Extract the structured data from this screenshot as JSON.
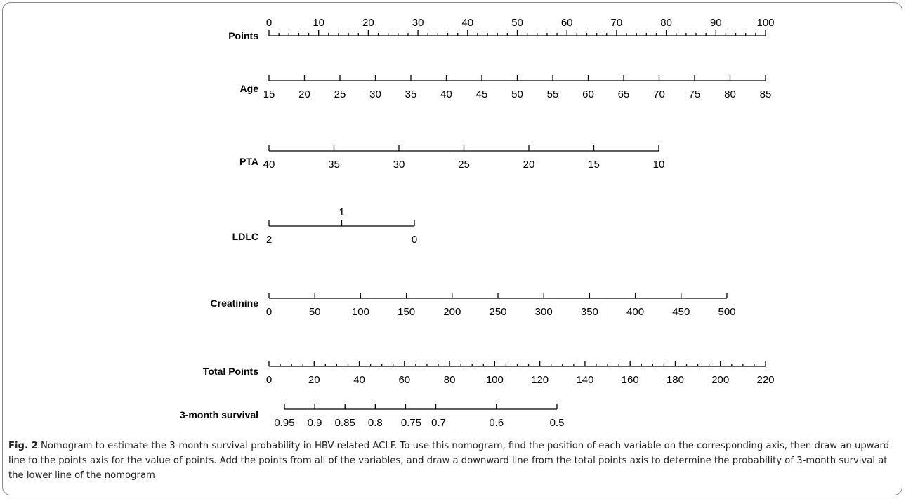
{
  "chart_data": {
    "type": "nomogram",
    "axes": [
      {
        "label": "Points",
        "ticks": [
          {
            "value": 0,
            "text": "0"
          },
          {
            "value": 10,
            "text": "10"
          },
          {
            "value": 20,
            "text": "20"
          },
          {
            "value": 30,
            "text": "30"
          },
          {
            "value": 40,
            "text": "40"
          },
          {
            "value": 50,
            "text": "50"
          },
          {
            "value": 60,
            "text": "60"
          },
          {
            "value": 70,
            "text": "70"
          },
          {
            "value": 80,
            "text": "80"
          },
          {
            "value": 90,
            "text": "90"
          },
          {
            "value": 100,
            "text": "100"
          }
        ]
      },
      {
        "label": "Age",
        "ticks": [
          {
            "value": 15,
            "text": "15"
          },
          {
            "value": 20,
            "text": "20"
          },
          {
            "value": 25,
            "text": "25"
          },
          {
            "value": 30,
            "text": "30"
          },
          {
            "value": 35,
            "text": "35"
          },
          {
            "value": 40,
            "text": "40"
          },
          {
            "value": 45,
            "text": "45"
          },
          {
            "value": 50,
            "text": "50"
          },
          {
            "value": 55,
            "text": "55"
          },
          {
            "value": 60,
            "text": "60"
          },
          {
            "value": 65,
            "text": "65"
          },
          {
            "value": 70,
            "text": "70"
          },
          {
            "value": 75,
            "text": "75"
          },
          {
            "value": 80,
            "text": "80"
          },
          {
            "value": 85,
            "text": "85"
          }
        ]
      },
      {
        "label": "PTA",
        "ticks": [
          {
            "value": 40,
            "text": "40"
          },
          {
            "value": 35,
            "text": "35"
          },
          {
            "value": 30,
            "text": "30"
          },
          {
            "value": 25,
            "text": "25"
          },
          {
            "value": 20,
            "text": "20"
          },
          {
            "value": 15,
            "text": "15"
          },
          {
            "value": 10,
            "text": "10"
          }
        ]
      },
      {
        "label": "LDLC",
        "ticks": [
          {
            "value": 2,
            "text": "2"
          },
          {
            "value": 1,
            "text": "1"
          },
          {
            "value": 0,
            "text": "0"
          }
        ]
      },
      {
        "label": "Creatinine",
        "ticks": [
          {
            "value": 0,
            "text": "0"
          },
          {
            "value": 50,
            "text": "50"
          },
          {
            "value": 100,
            "text": "100"
          },
          {
            "value": 150,
            "text": "150"
          },
          {
            "value": 200,
            "text": "200"
          },
          {
            "value": 250,
            "text": "250"
          },
          {
            "value": 300,
            "text": "300"
          },
          {
            "value": 350,
            "text": "350"
          },
          {
            "value": 400,
            "text": "400"
          },
          {
            "value": 450,
            "text": "450"
          },
          {
            "value": 500,
            "text": "500"
          }
        ]
      },
      {
        "label": "Total Points",
        "ticks": [
          {
            "value": 0,
            "text": "0"
          },
          {
            "value": 20,
            "text": "20"
          },
          {
            "value": 40,
            "text": "40"
          },
          {
            "value": 60,
            "text": "60"
          },
          {
            "value": 80,
            "text": "80"
          },
          {
            "value": 100,
            "text": "100"
          },
          {
            "value": 120,
            "text": "120"
          },
          {
            "value": 140,
            "text": "140"
          },
          {
            "value": 160,
            "text": "160"
          },
          {
            "value": 180,
            "text": "180"
          },
          {
            "value": 200,
            "text": "200"
          },
          {
            "value": 220,
            "text": "220"
          }
        ]
      },
      {
        "label": "3-month survival",
        "ticks": [
          {
            "value": 0.95,
            "text": "0.95"
          },
          {
            "value": 0.9,
            "text": "0.9"
          },
          {
            "value": 0.85,
            "text": "0.85"
          },
          {
            "value": 0.8,
            "text": "0.8"
          },
          {
            "value": 0.75,
            "text": "0.75"
          },
          {
            "value": 0.7,
            "text": "0.7"
          },
          {
            "value": 0.6,
            "text": "0.6"
          },
          {
            "value": 0.5,
            "text": "0.5"
          }
        ]
      }
    ]
  },
  "caption": {
    "fig_label": "Fig. 2",
    "text": "Nomogram to estimate the 3-month survival probability in HBV-related ACLF. To use this nomogram, find the position of each variable on the corresponding axis, then draw an upward line to the points axis for the value of points. Add the points from all of the variables, and draw a downward line from the total points axis to determine the probability of 3-month survival at the lower line of the nomogram"
  }
}
